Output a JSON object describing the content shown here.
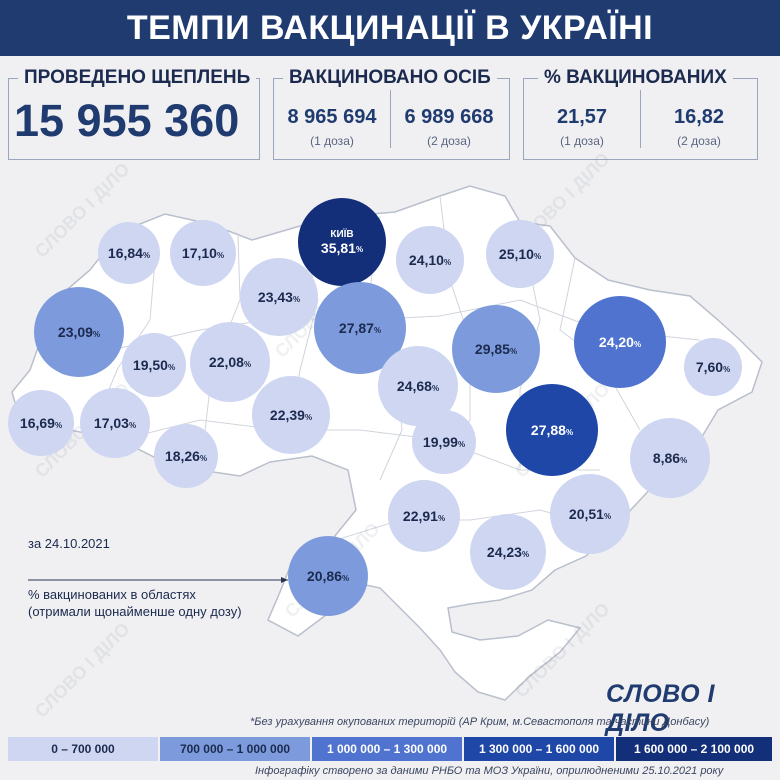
{
  "title": "ТЕМПИ ВАКЦИНАЦІЇ В УКРАЇНІ",
  "totals": {
    "shots_label": "ПРОВЕДЕНО ЩЕПЛЕНЬ",
    "shots_value": "15 955 360",
    "people_label": "ВАКЦИНОВАНО ОСІБ",
    "people_dose1": "8 965 694",
    "people_dose1_note": "(1 доза)",
    "people_dose2": "6 989 668",
    "people_dose2_note": "(2 доза)",
    "percent_label": "% ВАКЦИНОВАНИХ",
    "percent_dose1": "21,57",
    "percent_dose1_note": "(1 доза)",
    "percent_dose2": "16,82",
    "percent_dose2_note": "(2 доза)"
  },
  "map": {
    "regions": [
      {
        "value": "16,84",
        "tier": 0
      },
      {
        "value": "17,10",
        "tier": 0
      },
      {
        "value": "35,81",
        "tier": 4,
        "label": "КИЇВ"
      },
      {
        "value": "24,10",
        "tier": 0
      },
      {
        "value": "25,10",
        "tier": 0
      },
      {
        "value": "23,43",
        "tier": 0
      },
      {
        "value": "23,09",
        "tier": 1
      },
      {
        "value": "27,87",
        "tier": 1
      },
      {
        "value": "29,85",
        "tier": 1
      },
      {
        "value": "24,20",
        "tier": 2
      },
      {
        "value": "19,50",
        "tier": 0
      },
      {
        "value": "22,08",
        "tier": 0
      },
      {
        "value": "7,60",
        "tier": 0
      },
      {
        "value": "24,68",
        "tier": 0
      },
      {
        "value": "16,69",
        "tier": 0
      },
      {
        "value": "17,03",
        "tier": 0
      },
      {
        "value": "22,39",
        "tier": 0
      },
      {
        "value": "19,99",
        "tier": 0
      },
      {
        "value": "27,88",
        "tier": 3
      },
      {
        "value": "18,26",
        "tier": 0
      },
      {
        "value": "8,86",
        "tier": 0
      },
      {
        "value": "22,91",
        "tier": 0
      },
      {
        "value": "20,51",
        "tier": 0
      },
      {
        "value": "24,23",
        "tier": 0
      },
      {
        "value": "20,86",
        "tier": 1
      }
    ]
  },
  "date_note": "за 24.10.2021",
  "legend_note": "% вакцинованих в областях (отримали щонайменше одну дозу)",
  "logo": "СЛОВО І ДІЛО",
  "footnote": "*Без урахування окупованих територій (АР Крим, м.Севастополя та частини Донбасу)",
  "legend": [
    {
      "label": "0 – 700 000",
      "color": "#cfd6f2"
    },
    {
      "label": "700 000 – 1 000 000",
      "color": "#7d9bdc"
    },
    {
      "label": "1 000 000 – 1 300 000",
      "color": "#4f73cf"
    },
    {
      "label": "1 300 000 – 1 600 000",
      "color": "#1e47a8"
    },
    {
      "label": "1 600 000 – 2 100 000",
      "color": "#142f7a"
    }
  ],
  "credit": "Інфографіку створено за даними РНБО та МОЗ України, оприлюдненими 25.10.2021 року"
}
